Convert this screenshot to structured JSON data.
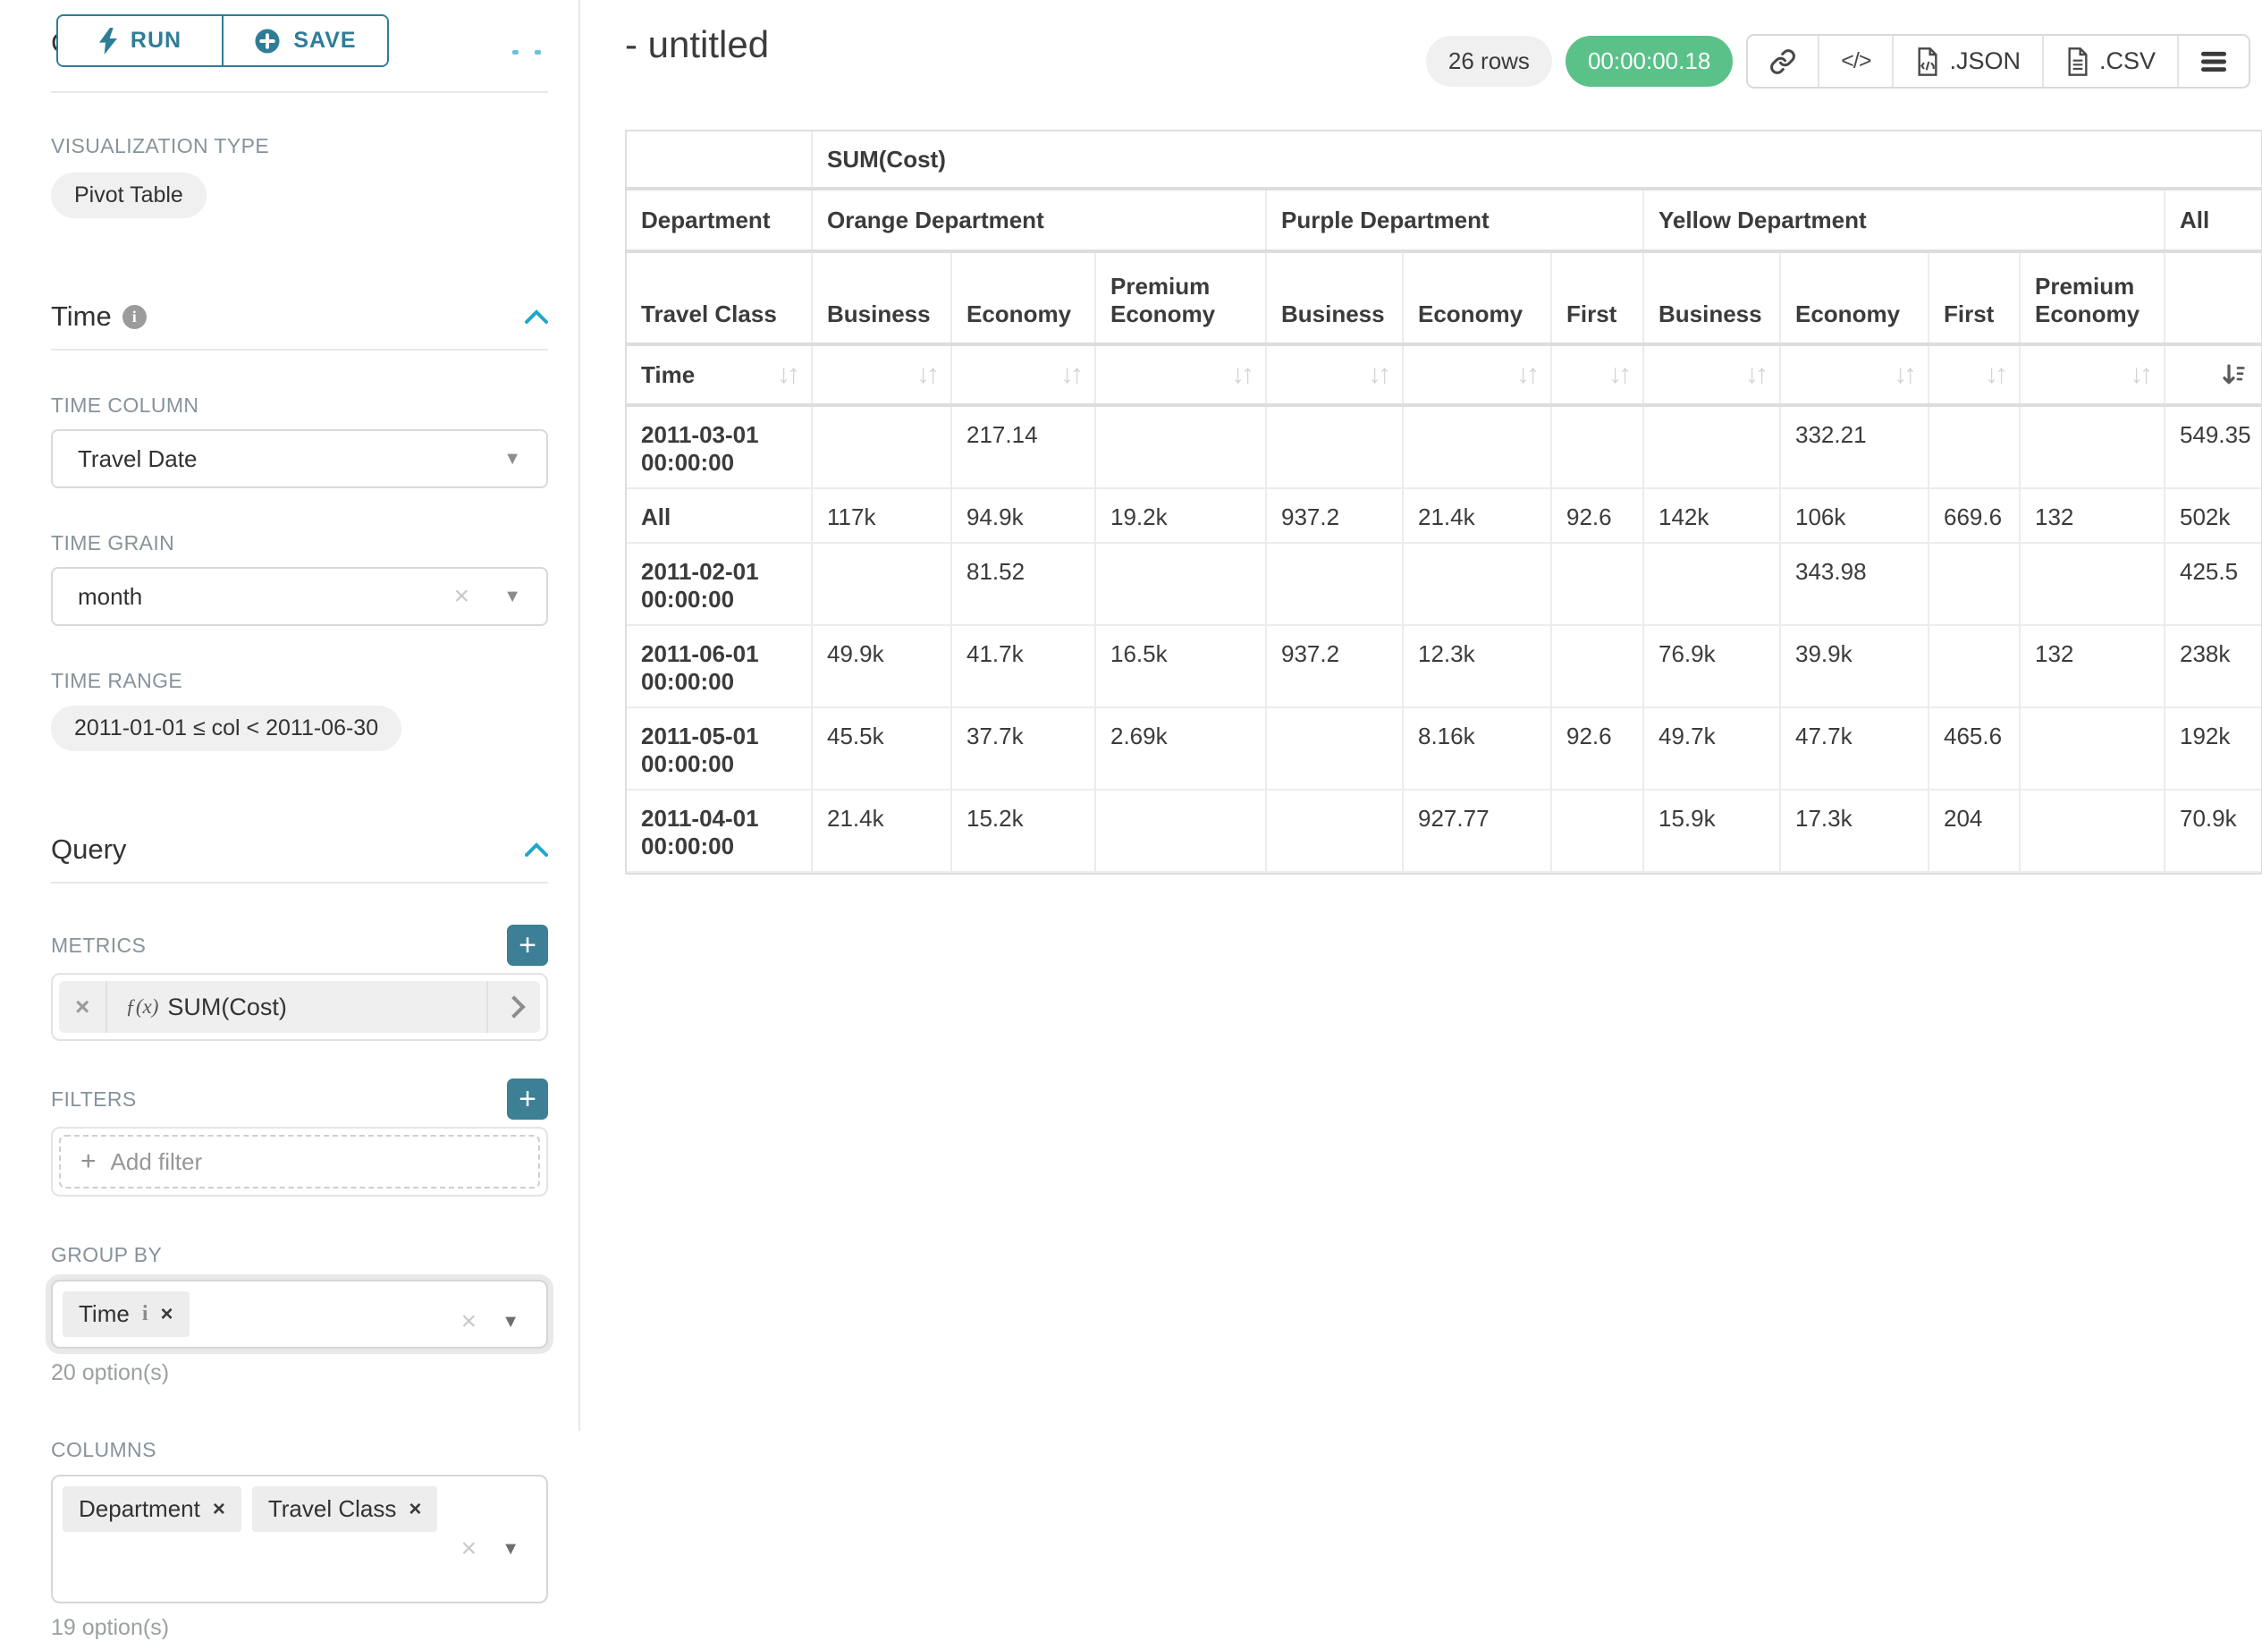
{
  "sidebar": {
    "chart_type_heading": "Chart Type",
    "run_label": "RUN",
    "save_label": "SAVE",
    "viz_type_label": "VISUALIZATION TYPE",
    "viz_type_value": "Pivot Table",
    "time_section": {
      "title": "Time",
      "time_column_label": "TIME COLUMN",
      "time_column_value": "Travel Date",
      "time_grain_label": "TIME GRAIN",
      "time_grain_value": "month",
      "time_range_label": "TIME RANGE",
      "time_range_value": "2011-01-01 ≤ col < 2011-06-30"
    },
    "query_section": {
      "title": "Query",
      "metrics_label": "METRICS",
      "metric_fx": "ƒ(x)",
      "metric_value": "SUM(Cost)",
      "filters_label": "FILTERS",
      "add_filter_label": "Add filter",
      "group_by_label": "GROUP BY",
      "group_by_pills": [
        {
          "label": "Time"
        }
      ],
      "group_by_hint": "20 option(s)",
      "columns_label": "COLUMNS",
      "columns_pills": [
        {
          "label": "Department"
        },
        {
          "label": "Travel Class"
        }
      ],
      "columns_hint": "19 option(s)"
    }
  },
  "header": {
    "title": "- untitled",
    "row_count": "26 rows",
    "timer": "00:00:00.18",
    "export_json_label": ".JSON",
    "export_csv_label": ".CSV"
  },
  "icons": {
    "sort_updown": "↓↑",
    "caret_down": "▼",
    "clear_x": "×",
    "pill_x": "×",
    "plus": "+",
    "code": "</>"
  },
  "pivot_table": {
    "metric_header": "SUM(Cost)",
    "corner_row2": "Department",
    "corner_row3": "Travel Class",
    "corner_row4": "Time",
    "column_groups": [
      {
        "label": "Orange Department",
        "columns": [
          "Business",
          "Economy",
          "Premium Economy"
        ]
      },
      {
        "label": "Purple Department",
        "columns": [
          "Business",
          "Economy",
          "First"
        ]
      },
      {
        "label": "Yellow Department",
        "columns": [
          "Business",
          "Economy",
          "First",
          "Premium Economy"
        ]
      }
    ],
    "all_group_label": "All",
    "rows": [
      {
        "label": "2011-03-01 00:00:00",
        "values": [
          "",
          "217.14",
          "",
          "",
          "",
          "",
          "",
          "332.21",
          "",
          "",
          "549.35"
        ]
      },
      {
        "label": "All",
        "values": [
          "117k",
          "94.9k",
          "19.2k",
          "937.2",
          "21.4k",
          "92.6",
          "142k",
          "106k",
          "669.6",
          "132",
          "502k"
        ]
      },
      {
        "label": "2011-02-01 00:00:00",
        "values": [
          "",
          "81.52",
          "",
          "",
          "",
          "",
          "",
          "343.98",
          "",
          "",
          "425.5"
        ]
      },
      {
        "label": "2011-06-01 00:00:00",
        "values": [
          "49.9k",
          "41.7k",
          "16.5k",
          "937.2",
          "12.3k",
          "",
          "76.9k",
          "39.9k",
          "",
          "132",
          "238k"
        ]
      },
      {
        "label": "2011-05-01 00:00:00",
        "values": [
          "45.5k",
          "37.7k",
          "2.69k",
          "",
          "8.16k",
          "92.6",
          "49.7k",
          "47.7k",
          "465.6",
          "",
          "192k"
        ]
      },
      {
        "label": "2011-04-01 00:00:00",
        "values": [
          "21.4k",
          "15.2k",
          "",
          "",
          "927.77",
          "",
          "15.9k",
          "17.3k",
          "204",
          "",
          "70.9k"
        ]
      }
    ]
  },
  "colors": {
    "primary_teal": "#2e7d96",
    "accent_blue": "#20a7c9",
    "success_green": "#5ac189",
    "pill_gray": "#f0f0f0"
  }
}
